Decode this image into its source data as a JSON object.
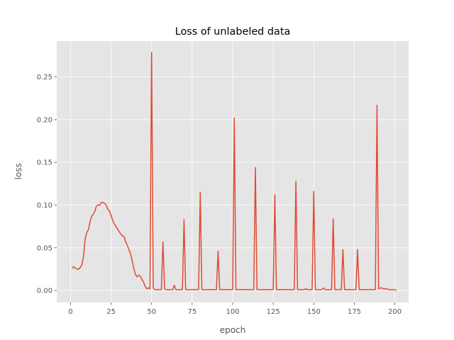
{
  "chart_data": {
    "type": "line",
    "title": "Loss of unlabeled data",
    "xlabel": "epoch",
    "ylabel": "loss",
    "xlim": [
      -8.5,
      208.5
    ],
    "ylim": [
      -0.014,
      0.292
    ],
    "x_ticks": [
      0,
      25,
      50,
      75,
      100,
      125,
      150,
      175,
      200
    ],
    "x_tick_labels": [
      "0",
      "25",
      "50",
      "75",
      "100",
      "125",
      "150",
      "175",
      "200"
    ],
    "y_ticks": [
      0.0,
      0.05,
      0.1,
      0.15,
      0.2,
      0.25
    ],
    "y_tick_labels": [
      "0.00",
      "0.05",
      "0.10",
      "0.15",
      "0.20",
      "0.25"
    ],
    "grid": true,
    "background": "#e5e5e5",
    "grid_color": "#ffffff",
    "line_color": "#e24a33",
    "series": [
      {
        "points": [
          [
            1,
            0.026
          ],
          [
            2,
            0.028
          ],
          [
            3,
            0.026
          ],
          [
            4,
            0.025
          ],
          [
            5,
            0.025
          ],
          [
            6,
            0.027
          ],
          [
            7,
            0.03
          ],
          [
            8,
            0.04
          ],
          [
            9,
            0.06
          ],
          [
            10,
            0.068
          ],
          [
            11,
            0.071
          ],
          [
            12,
            0.08
          ],
          [
            13,
            0.087
          ],
          [
            14,
            0.089
          ],
          [
            15,
            0.093
          ],
          [
            16,
            0.099
          ],
          [
            17,
            0.1
          ],
          [
            18,
            0.1
          ],
          [
            19,
            0.103
          ],
          [
            20,
            0.103
          ],
          [
            21,
            0.102
          ],
          [
            22,
            0.1
          ],
          [
            23,
            0.095
          ],
          [
            24,
            0.093
          ],
          [
            25,
            0.088
          ],
          [
            26,
            0.082
          ],
          [
            27,
            0.078
          ],
          [
            28,
            0.075
          ],
          [
            29,
            0.072
          ],
          [
            30,
            0.069
          ],
          [
            31,
            0.066
          ],
          [
            32,
            0.064
          ],
          [
            33,
            0.063
          ],
          [
            34,
            0.057
          ],
          [
            35,
            0.053
          ],
          [
            36,
            0.048
          ],
          [
            37,
            0.043
          ],
          [
            38,
            0.035
          ],
          [
            39,
            0.026
          ],
          [
            40,
            0.019
          ],
          [
            41,
            0.016
          ],
          [
            42,
            0.018
          ],
          [
            43,
            0.017
          ],
          [
            44,
            0.013
          ],
          [
            45,
            0.01
          ],
          [
            46,
            0.005
          ],
          [
            47,
            0.002
          ],
          [
            48,
            0.003
          ],
          [
            49,
            0.002
          ],
          [
            50,
            0.279
          ],
          [
            51,
            0.003
          ],
          [
            52,
            0.001
          ],
          [
            53,
            0.001
          ],
          [
            54,
            0.001
          ],
          [
            55,
            0.001
          ],
          [
            56,
            0.001
          ],
          [
            57,
            0.057
          ],
          [
            58,
            0.002
          ],
          [
            59,
            0.001
          ],
          [
            60,
            0.001
          ],
          [
            61,
            0.001
          ],
          [
            62,
            0.001
          ],
          [
            63,
            0.001
          ],
          [
            64,
            0.006
          ],
          [
            65,
            0.001
          ],
          [
            66,
            0.001
          ],
          [
            67,
            0.001
          ],
          [
            68,
            0.001
          ],
          [
            69,
            0.001
          ],
          [
            70,
            0.083
          ],
          [
            71,
            0.001
          ],
          [
            72,
            0.001
          ],
          [
            73,
            0.001
          ],
          [
            74,
            0.001
          ],
          [
            75,
            0.001
          ],
          [
            76,
            0.001
          ],
          [
            77,
            0.001
          ],
          [
            78,
            0.001
          ],
          [
            79,
            0.001
          ],
          [
            80,
            0.115
          ],
          [
            81,
            0.001
          ],
          [
            82,
            0.001
          ],
          [
            83,
            0.001
          ],
          [
            84,
            0.001
          ],
          [
            85,
            0.001
          ],
          [
            86,
            0.001
          ],
          [
            87,
            0.001
          ],
          [
            88,
            0.001
          ],
          [
            89,
            0.001
          ],
          [
            90,
            0.001
          ],
          [
            91,
            0.046
          ],
          [
            92,
            0.001
          ],
          [
            93,
            0.001
          ],
          [
            94,
            0.001
          ],
          [
            95,
            0.001
          ],
          [
            96,
            0.001
          ],
          [
            97,
            0.001
          ],
          [
            98,
            0.001
          ],
          [
            99,
            0.001
          ],
          [
            100,
            0.001
          ],
          [
            101,
            0.202
          ],
          [
            102,
            0.001
          ],
          [
            103,
            0.001
          ],
          [
            104,
            0.001
          ],
          [
            105,
            0.001
          ],
          [
            106,
            0.001
          ],
          [
            107,
            0.001
          ],
          [
            108,
            0.001
          ],
          [
            109,
            0.001
          ],
          [
            110,
            0.001
          ],
          [
            111,
            0.001
          ],
          [
            112,
            0.001
          ],
          [
            113,
            0.001
          ],
          [
            114,
            0.144
          ],
          [
            115,
            0.001
          ],
          [
            116,
            0.001
          ],
          [
            117,
            0.001
          ],
          [
            118,
            0.001
          ],
          [
            119,
            0.001
          ],
          [
            120,
            0.001
          ],
          [
            121,
            0.001
          ],
          [
            122,
            0.001
          ],
          [
            123,
            0.001
          ],
          [
            124,
            0.001
          ],
          [
            125,
            0.001
          ],
          [
            126,
            0.112
          ],
          [
            127,
            0.001
          ],
          [
            128,
            0.001
          ],
          [
            129,
            0.001
          ],
          [
            130,
            0.001
          ],
          [
            131,
            0.001
          ],
          [
            132,
            0.001
          ],
          [
            133,
            0.001
          ],
          [
            134,
            0.001
          ],
          [
            135,
            0.001
          ],
          [
            136,
            0.001
          ],
          [
            137,
            0.001
          ],
          [
            138,
            0.001
          ],
          [
            139,
            0.128
          ],
          [
            140,
            0.001
          ],
          [
            141,
            0.001
          ],
          [
            142,
            0.001
          ],
          [
            143,
            0.001
          ],
          [
            144,
            0.001
          ],
          [
            145,
            0.002
          ],
          [
            146,
            0.001
          ],
          [
            147,
            0.001
          ],
          [
            148,
            0.001
          ],
          [
            149,
            0.001
          ],
          [
            150,
            0.116
          ],
          [
            151,
            0.001
          ],
          [
            152,
            0.001
          ],
          [
            153,
            0.001
          ],
          [
            154,
            0.001
          ],
          [
            155,
            0.001
          ],
          [
            156,
            0.003
          ],
          [
            157,
            0.001
          ],
          [
            158,
            0.001
          ],
          [
            159,
            0.001
          ],
          [
            160,
            0.001
          ],
          [
            161,
            0.001
          ],
          [
            162,
            0.084
          ],
          [
            163,
            0.001
          ],
          [
            164,
            0.001
          ],
          [
            165,
            0.001
          ],
          [
            166,
            0.001
          ],
          [
            167,
            0.001
          ],
          [
            168,
            0.048
          ],
          [
            169,
            0.001
          ],
          [
            170,
            0.001
          ],
          [
            171,
            0.001
          ],
          [
            172,
            0.001
          ],
          [
            173,
            0.001
          ],
          [
            174,
            0.001
          ],
          [
            175,
            0.001
          ],
          [
            176,
            0.001
          ],
          [
            177,
            0.048
          ],
          [
            178,
            0.001
          ],
          [
            179,
            0.001
          ],
          [
            180,
            0.001
          ],
          [
            181,
            0.001
          ],
          [
            182,
            0.001
          ],
          [
            183,
            0.001
          ],
          [
            184,
            0.001
          ],
          [
            185,
            0.001
          ],
          [
            186,
            0.001
          ],
          [
            187,
            0.001
          ],
          [
            188,
            0.001
          ],
          [
            189,
            0.217
          ],
          [
            190,
            0.002
          ],
          [
            191,
            0.003
          ],
          [
            192,
            0.003
          ],
          [
            193,
            0.002
          ],
          [
            194,
            0.002
          ],
          [
            195,
            0.002
          ],
          [
            196,
            0.001
          ],
          [
            197,
            0.001
          ],
          [
            198,
            0.001
          ],
          [
            199,
            0.001
          ],
          [
            200,
            0.001
          ],
          [
            201,
            0.0
          ]
        ]
      }
    ]
  }
}
